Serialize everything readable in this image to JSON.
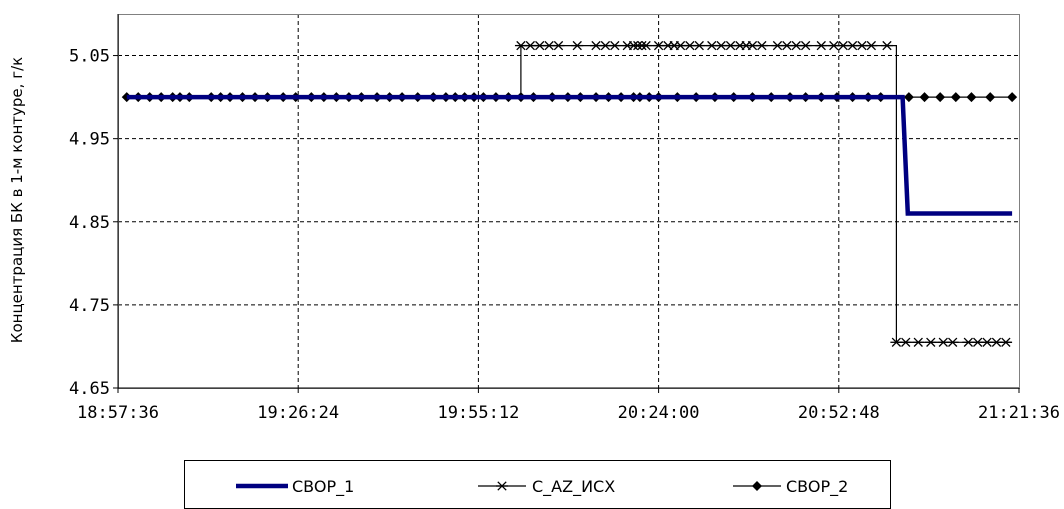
{
  "chart_data": {
    "type": "line",
    "title": "",
    "xlabel": "",
    "ylabel": "Концентрация БК в 1-м контуре, г/к",
    "x_axis": {
      "min": "18:57:36",
      "max": "21:21:36",
      "ticks": [
        "18:57:36",
        "19:26:24",
        "19:55:12",
        "20:24:00",
        "20:52:48",
        "21:21:36"
      ]
    },
    "y_axis": {
      "min": 4.65,
      "max": 5.1,
      "ticks": [
        "4.65",
        "4.75",
        "4.85",
        "4.95",
        "5.05"
      ]
    },
    "grid": true,
    "legend_position": "bottom",
    "series": [
      {
        "name": "CBOP_1",
        "color": "#000080",
        "marker": "none",
        "style": "thick",
        "points": [
          [
            "18:59:00",
            5.0
          ],
          [
            "21:03:00",
            5.0
          ],
          [
            "21:03:50",
            4.86
          ],
          [
            "21:20:30",
            4.86
          ]
        ]
      },
      {
        "name": "C_AZ_ИCX",
        "color": "#000000",
        "marker": "asterisk",
        "style": "thin-step",
        "points": [
          [
            "18:59:00",
            5.0
          ],
          [
            "20:02:00",
            5.0
          ],
          [
            "20:02:00",
            5.062
          ],
          [
            "21:02:00",
            5.062
          ],
          [
            "21:02:00",
            4.705
          ],
          [
            "21:20:30",
            4.705
          ]
        ],
        "markers_x": [
          "20:02:00",
          "20:03:30",
          "20:05:00",
          "20:06:30",
          "20:08:00",
          "20:11:00",
          "20:14:00",
          "20:15:30",
          "20:17:00",
          "20:19:00",
          "20:20:00",
          "20:20:40",
          "20:21:20",
          "20:22:00",
          "20:24:00",
          "20:25:30",
          "20:26:30",
          "20:27:30",
          "20:29:00",
          "20:30:30",
          "20:32:30",
          "20:34:00",
          "20:35:30",
          "20:37:00",
          "20:38:00",
          "20:39:00",
          "20:40:30",
          "20:43:00",
          "20:44:30",
          "20:46:00",
          "20:47:30",
          "20:50:00",
          "20:52:00",
          "20:53:30",
          "20:55:00",
          "20:56:30",
          "20:58:00",
          "21:00:30"
        ],
        "markers_x_low": [
          "21:02:00",
          "21:03:30",
          "21:05:30",
          "21:07:30",
          "21:09:30",
          "21:11:00",
          "21:13:30",
          "21:15:00",
          "21:16:30",
          "21:18:00",
          "21:19:30"
        ]
      },
      {
        "name": "CBOP_2",
        "color": "#000000",
        "marker": "diamond",
        "style": "thin",
        "points": [
          [
            "18:59:00",
            5.0
          ],
          [
            "21:20:30",
            5.0
          ]
        ],
        "markers_x": [
          "18:59:00",
          "19:00:50",
          "19:02:40",
          "19:04:30",
          "19:06:20",
          "19:07:30",
          "19:09:00",
          "19:12:30",
          "19:14:00",
          "19:15:30",
          "19:17:30",
          "19:19:30",
          "19:21:30",
          "19:24:00",
          "19:26:00",
          "19:28:30",
          "19:30:30",
          "19:32:30",
          "19:34:30",
          "19:36:30",
          "19:39:00",
          "19:41:00",
          "19:43:00",
          "19:45:30",
          "19:48:00",
          "19:50:00",
          "19:51:30",
          "19:53:00",
          "19:54:30",
          "19:56:00",
          "19:58:00",
          "20:00:00",
          "20:02:00",
          "20:04:00",
          "20:07:00",
          "20:09:30",
          "20:11:30",
          "20:14:00",
          "20:16:00",
          "20:18:00",
          "20:20:00",
          "20:21:00",
          "20:22:30",
          "20:24:00",
          "20:27:00",
          "20:30:00",
          "20:33:00",
          "20:36:00",
          "20:39:00",
          "20:42:00",
          "20:45:00",
          "20:47:30",
          "20:50:00",
          "20:52:30",
          "20:55:00",
          "20:57:30",
          "20:59:30",
          "21:04:00",
          "21:06:30",
          "21:09:00",
          "21:11:30",
          "21:14:00",
          "21:17:00",
          "21:20:30"
        ]
      }
    ]
  }
}
